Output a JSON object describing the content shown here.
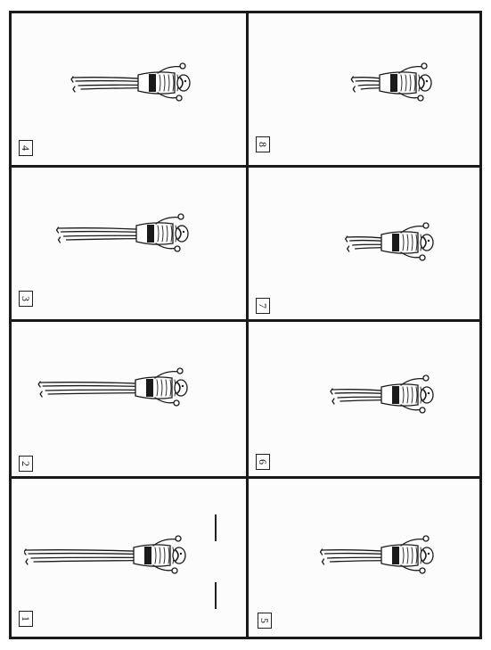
{
  "panels": [
    {
      "id": 1,
      "number_label": "1",
      "figure_icon": "lying-figure-icon",
      "scale": 1.0,
      "trail": 1.0,
      "cursor_marks": true
    },
    {
      "id": 2,
      "number_label": "2",
      "figure_icon": "lying-figure-icon",
      "scale": 1.0,
      "trail": 0.95,
      "cursor_marks": false
    },
    {
      "id": 3,
      "number_label": "3",
      "figure_icon": "lying-figure-icon",
      "scale": 1.0,
      "trail": 0.85,
      "cursor_marks": false
    },
    {
      "id": 4,
      "number_label": "4",
      "figure_icon": "lying-figure-icon",
      "scale": 1.0,
      "trail": 0.75,
      "cursor_marks": false
    },
    {
      "id": 5,
      "number_label": "5",
      "figure_icon": "lying-figure-icon",
      "scale": 1.0,
      "trail": 0.7,
      "cursor_marks": false
    },
    {
      "id": 6,
      "number_label": "6",
      "figure_icon": "lying-figure-icon",
      "scale": 1.0,
      "trail": 0.6,
      "cursor_marks": false
    },
    {
      "id": 7,
      "number_label": "7",
      "figure_icon": "lying-figure-icon",
      "scale": 1.0,
      "trail": 0.45,
      "cursor_marks": false
    },
    {
      "id": 8,
      "number_label": "8",
      "figure_icon": "lying-figure-icon",
      "scale": 1.0,
      "trail": 0.35,
      "cursor_marks": false
    }
  ],
  "colors": {
    "ink": "#1a1a1a",
    "paper": "#fcfcfc"
  }
}
